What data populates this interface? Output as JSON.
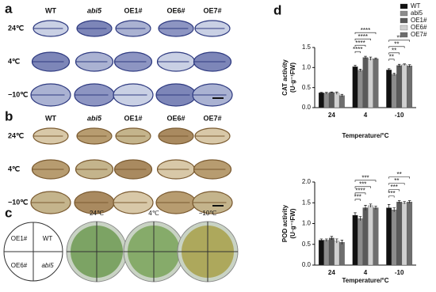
{
  "panels": {
    "a": {
      "letter": "a",
      "columns": [
        "WT",
        "abi5",
        "OE1#",
        "OE6#",
        "OE7#"
      ],
      "rows": [
        "24℃",
        "4℃",
        "−10℃"
      ]
    },
    "b": {
      "letter": "b",
      "columns": [
        "WT",
        "abi5",
        "OE1#",
        "OE6#",
        "OE7#"
      ],
      "rows": [
        "24℃",
        "4℃",
        "−10℃"
      ]
    },
    "c": {
      "letter": "c",
      "quadrants": [
        "OE1#",
        "WT",
        "OE6#",
        "abi5"
      ],
      "plates": [
        "24℃",
        "4℃",
        "−10℃"
      ]
    },
    "d": {
      "letter": "d"
    }
  },
  "chart_data": [
    {
      "type": "bar",
      "ylabel": "CAT activity",
      "ylabel_unit": "(U·g⁻¹FW)",
      "xlabel": "Temperature/°C",
      "categories": [
        "24",
        "4",
        "-10"
      ],
      "series": [
        {
          "name": "WT",
          "color": "#111111",
          "values": [
            0.37,
            1.02,
            0.94
          ],
          "errors": [
            0.01,
            0.04,
            0.03
          ]
        },
        {
          "name": "abi5",
          "color": "#8c8c8c",
          "values": [
            0.36,
            0.93,
            0.83
          ],
          "errors": [
            0.02,
            0.03,
            0.03
          ]
        },
        {
          "name": "OE1#",
          "color": "#5a5a5a",
          "values": [
            0.38,
            1.25,
            1.05
          ],
          "errors": [
            0.01,
            0.03,
            0.03
          ]
        },
        {
          "name": "OE6#",
          "color": "#d0d0d0",
          "values": [
            0.36,
            1.22,
            1.07
          ],
          "errors": [
            0.03,
            0.04,
            0.02
          ]
        },
        {
          "name": "OE7#",
          "color": "#6e6e6e",
          "values": [
            0.3,
            1.22,
            1.04
          ],
          "errors": [
            0.03,
            0.02,
            0.03
          ]
        }
      ],
      "brackets": [
        [],
        [
          "****",
          "****",
          "****",
          "****"
        ],
        [
          "**",
          "**",
          "**",
          "**"
        ]
      ],
      "ylim": [
        0,
        1.5
      ],
      "yticks": [
        {
          "value": 0,
          "label": "0.0"
        },
        {
          "value": 0.5,
          "label": "0.5"
        },
        {
          "value": 1,
          "label": "1.0"
        },
        {
          "value": 1.5,
          "label": "1.5"
        }
      ],
      "legend": "top-right"
    },
    {
      "type": "bar",
      "ylabel": "POD activity",
      "ylabel_unit": "(U·g⁻¹FW)",
      "xlabel": "Temperature/°C",
      "categories": [
        "24",
        "4",
        "-10"
      ],
      "series": [
        {
          "name": "WT",
          "color": "#111111",
          "values": [
            0.6,
            1.2,
            1.38
          ],
          "errors": [
            0.03,
            0.06,
            0.08
          ]
        },
        {
          "name": "abi5",
          "color": "#8c8c8c",
          "values": [
            0.6,
            1.12,
            1.33
          ],
          "errors": [
            0.03,
            0.05,
            0.05
          ]
        },
        {
          "name": "OE1#",
          "color": "#5a5a5a",
          "values": [
            0.65,
            1.38,
            1.52
          ],
          "errors": [
            0.04,
            0.06,
            0.03
          ]
        },
        {
          "name": "OE6#",
          "color": "#d0d0d0",
          "values": [
            0.58,
            1.43,
            1.5
          ],
          "errors": [
            0.05,
            0.04,
            0.03
          ]
        },
        {
          "name": "OE7#",
          "color": "#6e6e6e",
          "values": [
            0.55,
            1.38,
            1.52
          ],
          "errors": [
            0.05,
            0.04,
            0.03
          ]
        }
      ],
      "brackets": [
        [],
        [
          "***",
          "****",
          "***",
          "***"
        ],
        [
          "***",
          "***",
          "**",
          "**"
        ]
      ],
      "ylim": [
        0,
        2
      ],
      "yticks": [
        {
          "value": 0,
          "label": "0.0"
        },
        {
          "value": 0.5,
          "label": "0.5"
        },
        {
          "value": 1,
          "label": "1.0"
        },
        {
          "value": 1.5,
          "label": "1.5"
        },
        {
          "value": 2,
          "label": "2.0"
        }
      ]
    }
  ]
}
